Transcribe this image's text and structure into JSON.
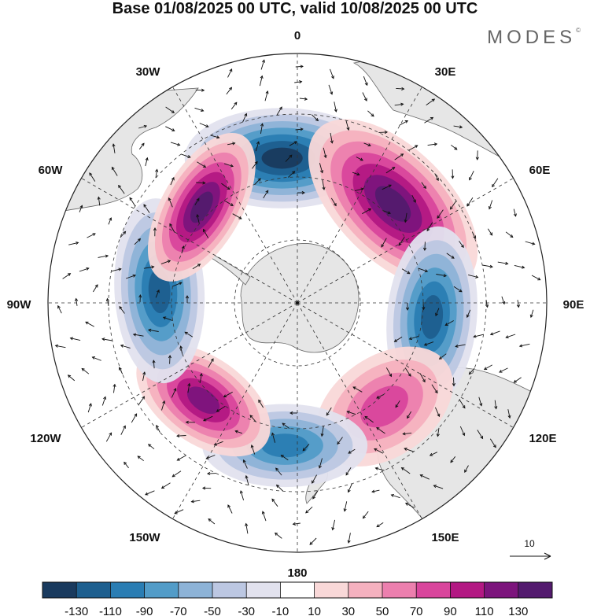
{
  "title": "Base 01/08/2025 00 UTC, valid 10/08/2025 00 UTC",
  "brand": "MODES",
  "brand_mark": "©",
  "longitude_labels": {
    "top": "0",
    "top_right": "30E",
    "right_upper": "60E",
    "right": "90E",
    "right_lower": "120E",
    "bottom_right": "150E",
    "bottom": "180",
    "bottom_left": "150W",
    "left_lower": "120W",
    "left": "90W",
    "left_upper": "60W",
    "top_left": "30W"
  },
  "vector_reference": {
    "value": "10"
  },
  "colorbar": {
    "tick_labels": [
      "-130",
      "-110",
      "-90",
      "-70",
      "-50",
      "-30",
      "-10",
      "10",
      "30",
      "50",
      "70",
      "90",
      "110",
      "130"
    ],
    "colors": [
      "#193a5e",
      "#1d5f8f",
      "#2a7db3",
      "#529cc8",
      "#8db3d7",
      "#bcc7e2",
      "#e2e2ee",
      "#ffffff",
      "#f9d8d8",
      "#f5b1bf",
      "#ec7fae",
      "#d9459c",
      "#b31883",
      "#7c147c",
      "#531a6e"
    ]
  },
  "map_colors": {
    "ocean": "#ffffff",
    "land": "#e8e8e8",
    "coast": "#555555"
  },
  "anomaly_cells": [
    {
      "sign": "negative",
      "peak": -150,
      "location": "near 15W"
    },
    {
      "sign": "positive",
      "peak": 150,
      "location": "near 50E"
    },
    {
      "sign": "negative",
      "peak": -110,
      "location": "near 95E"
    },
    {
      "sign": "positive",
      "peak": 70,
      "location": "near 140E"
    },
    {
      "sign": "negative",
      "peak": -90,
      "location": "near 175W"
    },
    {
      "sign": "positive",
      "peak": 110,
      "location": "near 125W"
    },
    {
      "sign": "negative",
      "peak": -110,
      "location": "near 80W"
    },
    {
      "sign": "positive",
      "peak": 130,
      "location": "near 45W"
    }
  ]
}
